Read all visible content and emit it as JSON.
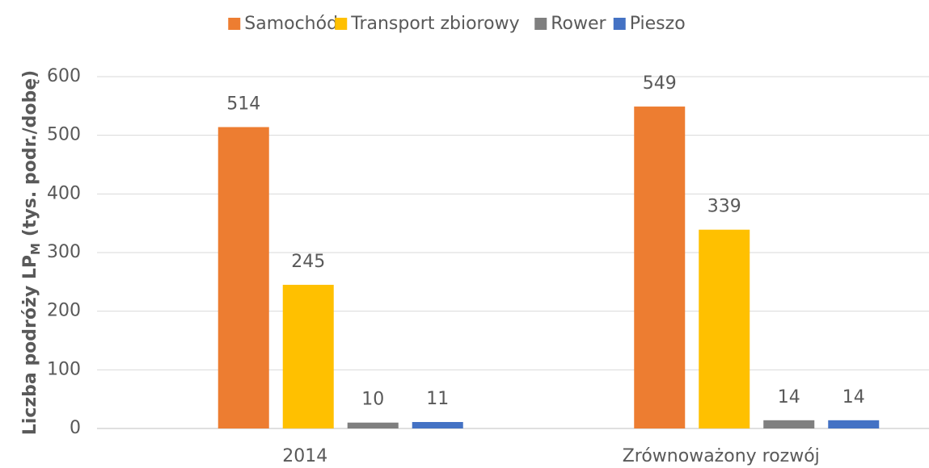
{
  "chart_data": {
    "type": "bar",
    "ylabel": {
      "main": "Liczba podróży  LP",
      "sub": "M",
      "rest": "(tys. podr./dobę)"
    },
    "categories": [
      "2014",
      "Zrównoważony rozwój"
    ],
    "series": [
      {
        "name": "Samochód",
        "color": "#ed7d31",
        "values": [
          514,
          549
        ]
      },
      {
        "name": "Transport zbiorowy",
        "color": "#ffc000",
        "values": [
          245,
          339
        ]
      },
      {
        "name": "Rower",
        "color": "#7f7f7f",
        "values": [
          10,
          14
        ]
      },
      {
        "name": "Pieszo",
        "color": "#4472c4",
        "values": [
          11,
          14
        ]
      }
    ],
    "ylim": [
      0,
      600
    ],
    "yticks": [
      0,
      100,
      200,
      300,
      400,
      500,
      600
    ],
    "grid": true,
    "legend": "top"
  }
}
